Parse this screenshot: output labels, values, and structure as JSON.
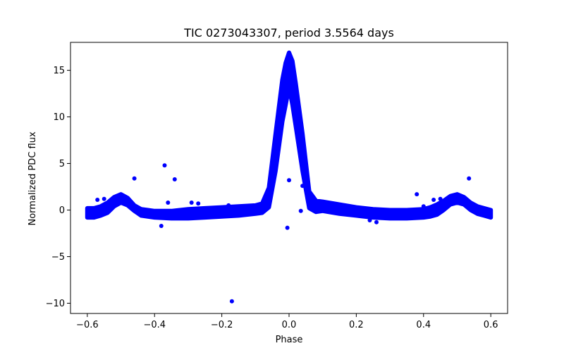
{
  "chart_data": {
    "type": "scatter",
    "title": "TIC 0273043307, period 3.5564 days",
    "xlabel": "Phase",
    "ylabel": "Normalized PDC flux",
    "xlim": [
      -0.65,
      0.65
    ],
    "ylim": [
      -11.1,
      18.0
    ],
    "x_ticks": [
      -0.6,
      -0.4,
      -0.2,
      0.0,
      0.2,
      0.4,
      0.6
    ],
    "x_tick_labels": [
      "−0.6",
      "−0.4",
      "−0.2",
      "0.0",
      "0.2",
      "0.4",
      "0.6"
    ],
    "y_ticks": [
      -10,
      -5,
      0,
      5,
      10,
      15
    ],
    "y_tick_labels": [
      "−10",
      "−5",
      "0",
      "5",
      "10",
      "15"
    ],
    "grid": false,
    "marker_color": "#0000ff",
    "band_color": "#0000ff",
    "series": [
      {
        "kind": "light-curve-band",
        "x": [
          -0.6,
          -0.58,
          -0.56,
          -0.54,
          -0.52,
          -0.5,
          -0.48,
          -0.46,
          -0.44,
          -0.42,
          -0.4,
          -0.35,
          -0.3,
          -0.25,
          -0.2,
          -0.15,
          -0.1,
          -0.08,
          -0.06,
          -0.04,
          -0.02,
          -0.01,
          0.0,
          0.01,
          0.02,
          0.04,
          0.06,
          0.08,
          0.1,
          0.15,
          0.2,
          0.25,
          0.3,
          0.35,
          0.4,
          0.42,
          0.44,
          0.46,
          0.48,
          0.5,
          0.52,
          0.54,
          0.56,
          0.58,
          0.6
        ],
        "y_low": [
          -0.8,
          -0.8,
          -0.6,
          -0.3,
          0.4,
          0.8,
          0.5,
          -0.1,
          -0.6,
          -0.7,
          -0.8,
          -0.9,
          -0.9,
          -0.8,
          -0.7,
          -0.6,
          -0.4,
          -0.3,
          0.3,
          4.2,
          9.5,
          11.3,
          13.2,
          11.3,
          9.0,
          4.2,
          0.2,
          -0.2,
          -0.1,
          -0.4,
          -0.6,
          -0.8,
          -0.9,
          -0.9,
          -0.8,
          -0.7,
          -0.5,
          0.0,
          0.6,
          0.8,
          0.6,
          0.0,
          -0.4,
          -0.6,
          -0.8
        ],
        "y_high": [
          0.2,
          0.2,
          0.4,
          0.8,
          1.4,
          1.7,
          1.3,
          0.5,
          0.1,
          0.0,
          -0.1,
          -0.1,
          0.1,
          0.2,
          0.3,
          0.4,
          0.5,
          0.7,
          2.4,
          8.2,
          14.0,
          15.8,
          16.9,
          16.0,
          13.6,
          8.2,
          2.0,
          1.0,
          0.9,
          0.6,
          0.3,
          0.1,
          0.0,
          0.0,
          0.1,
          0.3,
          0.6,
          1.0,
          1.5,
          1.7,
          1.4,
          0.8,
          0.4,
          0.2,
          0.0
        ]
      },
      {
        "kind": "outliers",
        "points": [
          {
            "x": -0.17,
            "y": -9.8
          },
          {
            "x": -0.37,
            "y": 4.8
          },
          {
            "x": -0.46,
            "y": 3.4
          },
          {
            "x": -0.34,
            "y": 3.3
          },
          {
            "x": -0.36,
            "y": 0.8
          },
          {
            "x": -0.38,
            "y": -1.7
          },
          {
            "x": -0.57,
            "y": 1.1
          },
          {
            "x": -0.55,
            "y": 1.2
          },
          {
            "x": -0.29,
            "y": 0.8
          },
          {
            "x": -0.27,
            "y": 0.7
          },
          {
            "x": 0.0,
            "y": 3.2
          },
          {
            "x": 0.04,
            "y": 2.6
          },
          {
            "x": -0.005,
            "y": -1.9
          },
          {
            "x": 0.035,
            "y": -0.1
          },
          {
            "x": 0.38,
            "y": 1.7
          },
          {
            "x": 0.43,
            "y": 1.1
          },
          {
            "x": 0.45,
            "y": 1.2
          },
          {
            "x": 0.535,
            "y": 3.4
          },
          {
            "x": 0.24,
            "y": -1.1
          },
          {
            "x": 0.26,
            "y": -1.3
          },
          {
            "x": 0.4,
            "y": 0.4
          },
          {
            "x": -0.18,
            "y": 0.5
          }
        ]
      }
    ]
  }
}
